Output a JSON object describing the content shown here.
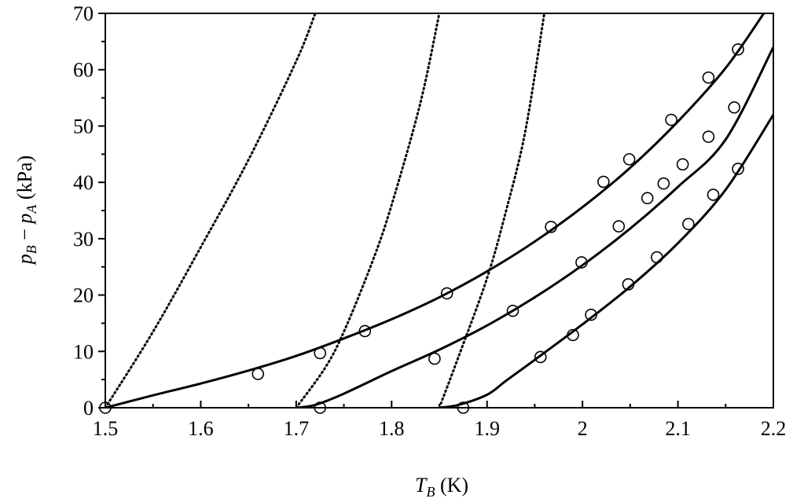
{
  "chart_data": {
    "type": "line",
    "xlabel": {
      "main": "T",
      "sub": "B",
      "unit": " (K)"
    },
    "ylabel": {
      "p1": "p",
      "s1": "B",
      "minus": " − ",
      "p2": "p",
      "s2": "A",
      "unit": " (kPa)"
    },
    "xlim": [
      1.5,
      2.2
    ],
    "ylim": [
      0,
      70
    ],
    "xticks": [
      1.5,
      1.6,
      1.7,
      1.8,
      1.9,
      2,
      2.1,
      2.2
    ],
    "xtick_labels": [
      "1.5",
      "1.6",
      "1.7",
      "1.8",
      "1.9",
      "2",
      "2.1",
      "2.2"
    ],
    "yticks": [
      0,
      10,
      20,
      30,
      40,
      50,
      60,
      70
    ],
    "ytick_labels": [
      "0",
      "10",
      "20",
      "30",
      "40",
      "50",
      "60",
      "70"
    ],
    "grid": false,
    "series_solid": [
      {
        "x": [
          1.5,
          1.55,
          1.6,
          1.65,
          1.7,
          1.75,
          1.8,
          1.85,
          1.9,
          1.95,
          2.0,
          2.05,
          2.1,
          2.15,
          2.19
        ],
        "y": [
          0,
          2.2,
          4.3,
          6.6,
          9.2,
          12.3,
          15.7,
          19.6,
          24.2,
          29.5,
          35.6,
          42.6,
          50.8,
          60.3,
          70
        ]
      },
      {
        "x": [
          1.7,
          1.72,
          1.75,
          1.8,
          1.85,
          1.9,
          1.95,
          2.0,
          2.05,
          2.1,
          2.15,
          2.2
        ],
        "y": [
          0,
          0.5,
          2.5,
          6.5,
          10.3,
          14.6,
          19.6,
          25.3,
          31.8,
          39.2,
          47.6,
          64
        ]
      },
      {
        "x": [
          1.85,
          1.87,
          1.9,
          1.92,
          1.95,
          2.0,
          2.05,
          2.1,
          2.15,
          2.2
        ],
        "y": [
          0,
          0.5,
          2.3,
          4.8,
          8.5,
          14.8,
          21.5,
          29.2,
          38.7,
          52
        ]
      }
    ],
    "series_dotted": [
      {
        "x": [
          1.5,
          1.55,
          1.6,
          1.65,
          1.7,
          1.72
        ],
        "y": [
          0,
          13.5,
          28.5,
          44,
          61.5,
          70
        ]
      },
      {
        "x": [
          1.7,
          1.73,
          1.75,
          1.78,
          1.8,
          1.83,
          1.85
        ],
        "y": [
          0,
          7,
          13.5,
          26,
          36,
          54,
          70
        ]
      },
      {
        "x": [
          1.85,
          1.87,
          1.9,
          1.92,
          1.94,
          1.96
        ],
        "y": [
          0,
          9,
          23,
          35,
          49,
          70
        ]
      }
    ],
    "series_markers": [
      {
        "x": [
          1.5,
          1.66,
          1.725,
          1.772,
          1.858,
          1.967,
          2.022,
          2.049,
          2.093,
          2.132,
          2.163
        ],
        "y": [
          0,
          6,
          9.7,
          13.6,
          20.3,
          32.1,
          40.1,
          44.1,
          51.1,
          58.6,
          63.6
        ]
      },
      {
        "x": [
          1.725,
          1.845,
          1.927,
          1.999,
          2.038,
          2.068,
          2.085,
          2.105,
          2.132,
          2.159
        ],
        "y": [
          0,
          8.7,
          17.2,
          25.8,
          32.2,
          37.2,
          39.8,
          43.2,
          48.1,
          53.3
        ]
      },
      {
        "x": [
          1.875,
          1.956,
          1.99,
          2.009,
          2.048,
          2.078,
          2.111,
          2.137,
          2.163
        ],
        "y": [
          0,
          9,
          12.9,
          16.5,
          21.9,
          26.7,
          32.6,
          37.8,
          42.4
        ]
      }
    ]
  }
}
